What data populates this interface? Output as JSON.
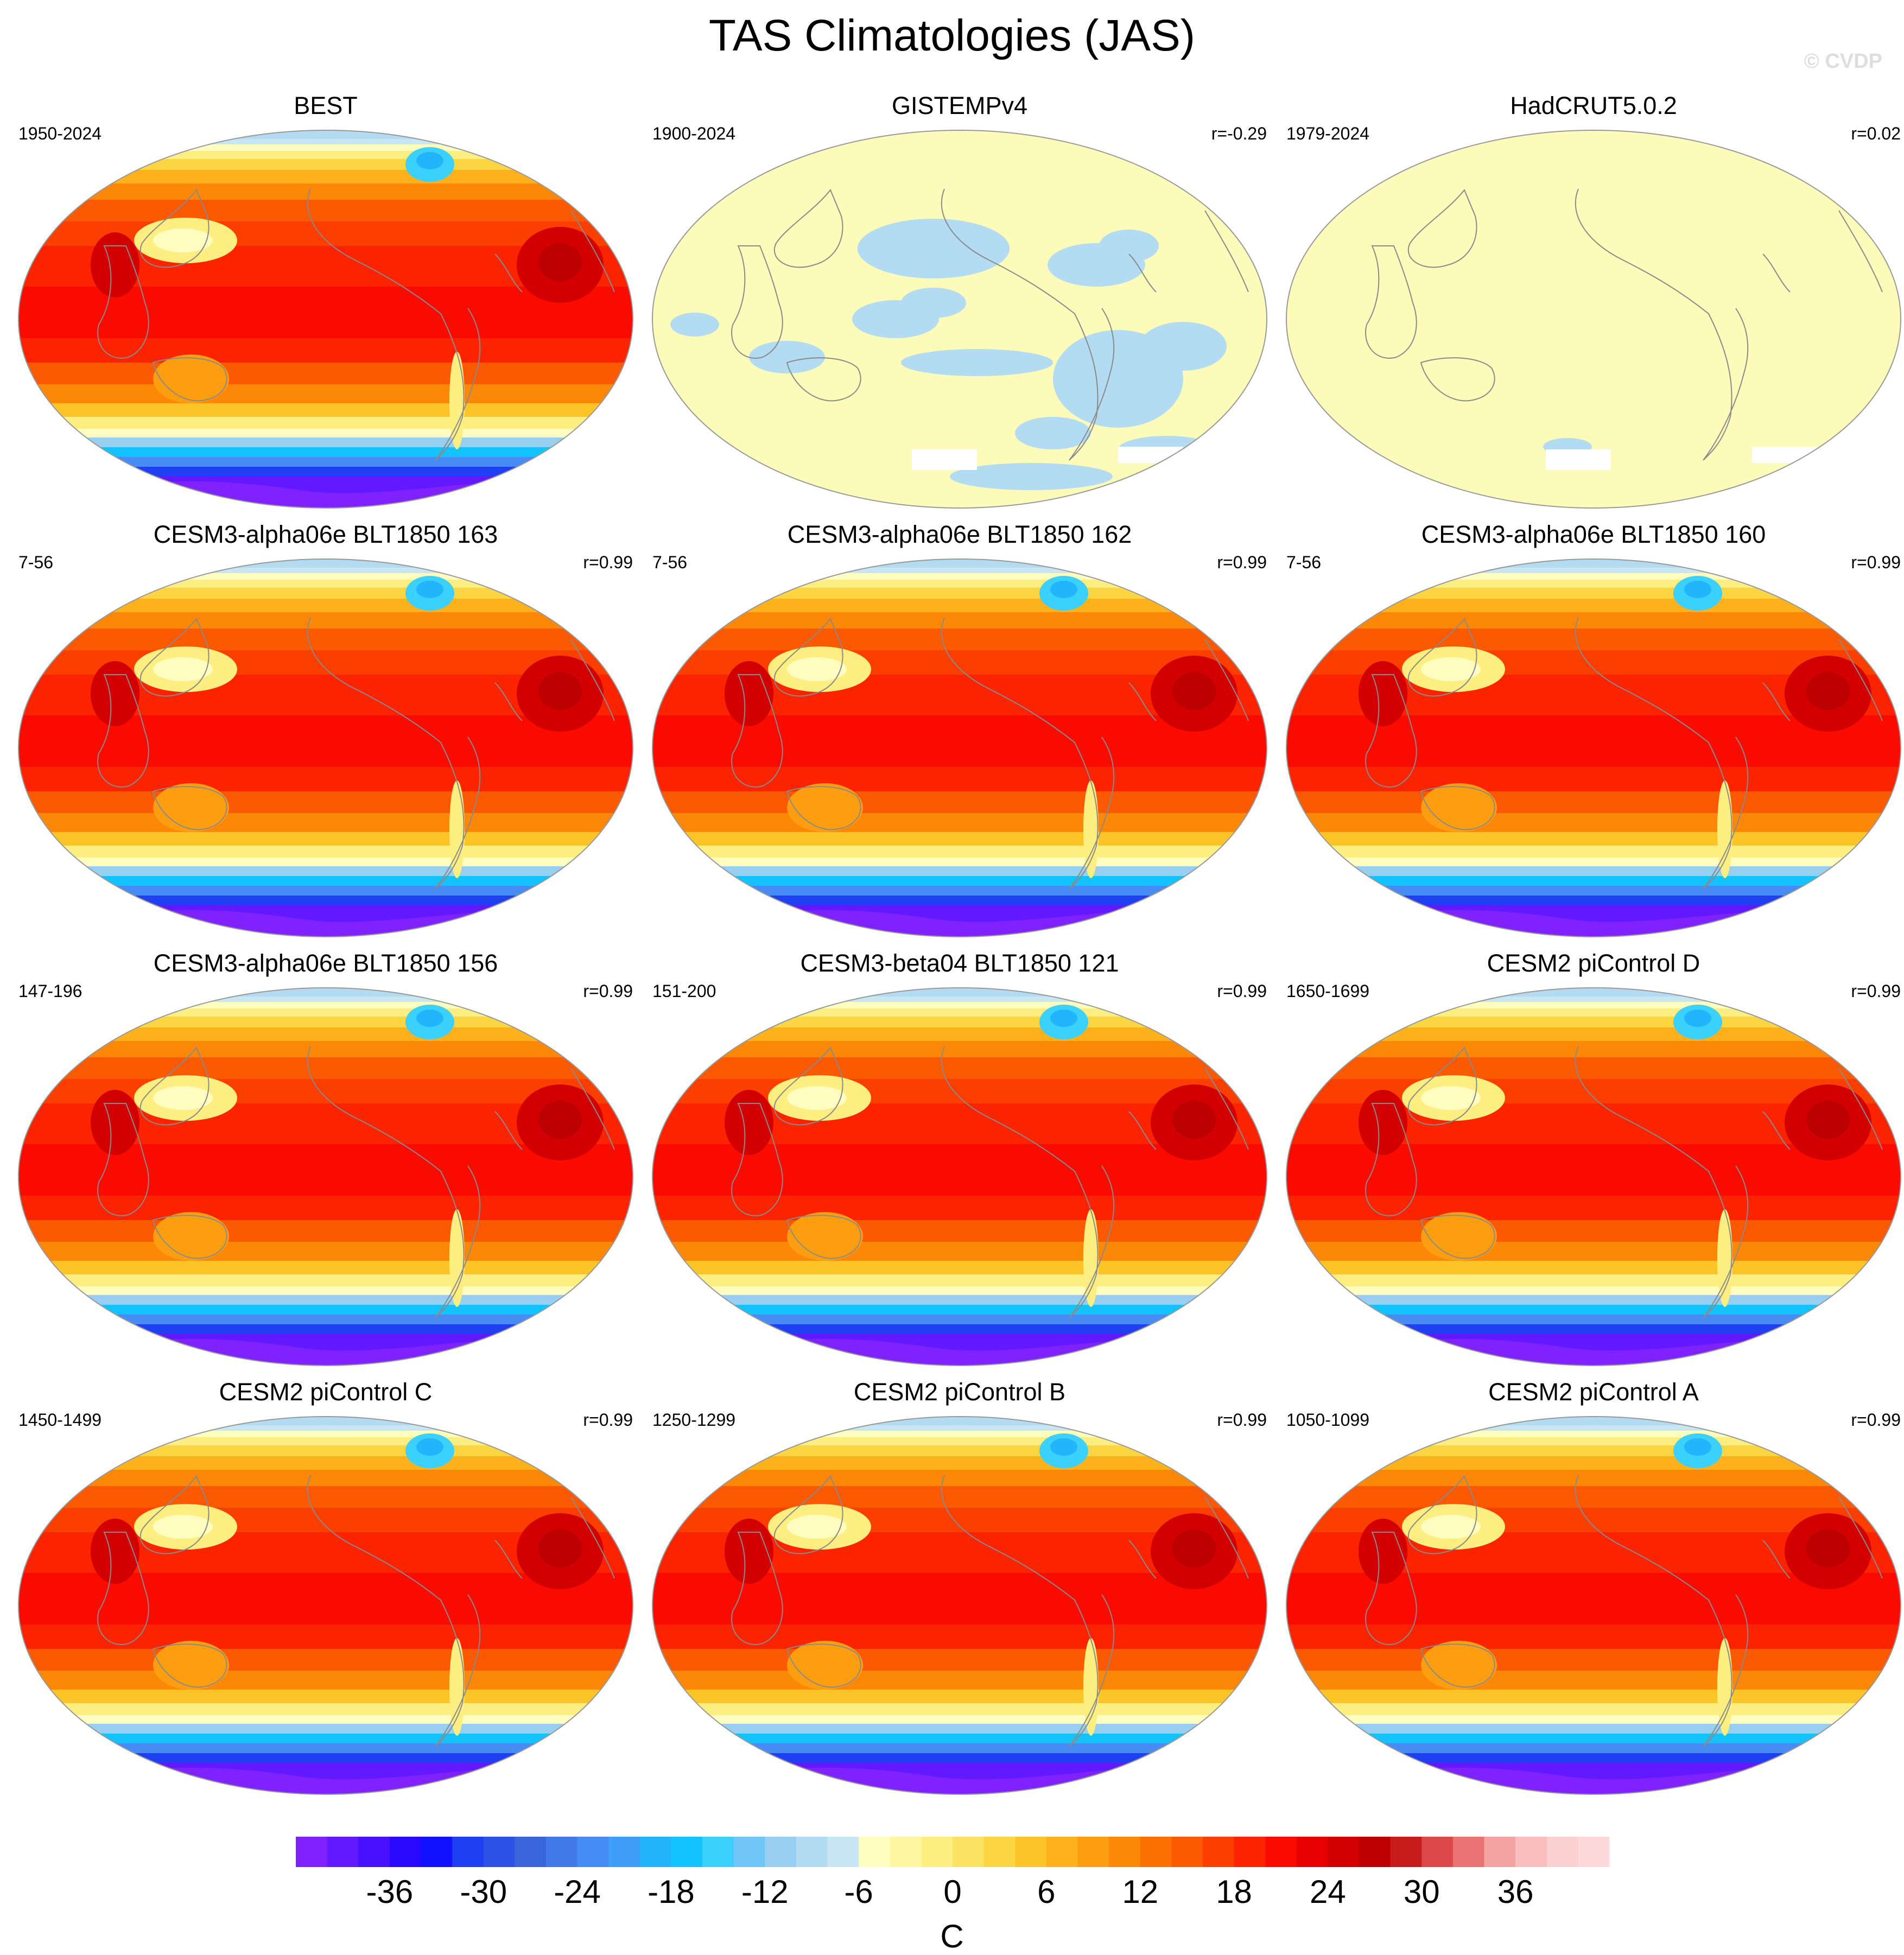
{
  "title": "TAS Climatologies (JAS)",
  "watermark": "© CVDP",
  "colors": {
    "ocean_pale": "#fdfbb9",
    "cold_patch": "#b3dcf2",
    "missing": "#ffffff",
    "coastline": "#8a8a8a",
    "outline": "#999999"
  },
  "panels": [
    {
      "title": "BEST",
      "period": "1950-2024",
      "corr": "",
      "style": "climatology"
    },
    {
      "title": "GISTEMPv4",
      "period": "1900-2024",
      "corr": "r=-0.29",
      "style": "anomaly_patches"
    },
    {
      "title": "HadCRUT5.0.2",
      "period": "1979-2024",
      "corr": "r=0.02",
      "style": "flat"
    },
    {
      "title": "CESM3-alpha06e BLT1850 163",
      "period": "7-56",
      "corr": "r=0.99",
      "style": "climatology"
    },
    {
      "title": "CESM3-alpha06e BLT1850 162",
      "period": "7-56",
      "corr": "r=0.99",
      "style": "climatology"
    },
    {
      "title": "CESM3-alpha06e BLT1850 160",
      "period": "7-56",
      "corr": "r=0.99",
      "style": "climatology"
    },
    {
      "title": "CESM3-alpha06e BLT1850 156",
      "period": "147-196",
      "corr": "r=0.99",
      "style": "climatology"
    },
    {
      "title": "CESM3-beta04 BLT1850 121",
      "period": "151-200",
      "corr": "r=0.99",
      "style": "climatology"
    },
    {
      "title": "CESM2 piControl D",
      "period": "1650-1699",
      "corr": "r=0.99",
      "style": "climatology"
    },
    {
      "title": "CESM2 piControl C",
      "period": "1450-1499",
      "corr": "r=0.99",
      "style": "climatology"
    },
    {
      "title": "CESM2 piControl B",
      "period": "1250-1299",
      "corr": "r=0.99",
      "style": "climatology"
    },
    {
      "title": "CESM2 piControl A",
      "period": "1050-1099",
      "corr": "r=0.99",
      "style": "climatology"
    }
  ],
  "colorbar": {
    "unit": "C",
    "min": -42,
    "max": 42,
    "step": 2,
    "tick_labels": [
      "-36",
      "-30",
      "-24",
      "-18",
      "-12",
      "-6",
      "0",
      "6",
      "12",
      "18",
      "24",
      "30",
      "36"
    ],
    "tick_values": [
      -36,
      -30,
      -24,
      -18,
      -12,
      -6,
      0,
      6,
      12,
      18,
      24,
      30,
      36
    ],
    "colors": [
      "#7f22ff",
      "#6319ff",
      "#4711ff",
      "#2b08ff",
      "#1111ff",
      "#1f3ff2",
      "#2c53e6",
      "#3a66db",
      "#4279e8",
      "#478cf4",
      "#3f9ff8",
      "#22b5fc",
      "#13c3fe",
      "#3cd0fd",
      "#70c6f7",
      "#98cff1",
      "#b3dcf2",
      "#c8e6f4",
      "#fefdbf",
      "#fdf6a0",
      "#fcee80",
      "#fce262",
      "#fcd543",
      "#fdc428",
      "#fdb21b",
      "#fd9e10",
      "#fd8707",
      "#fc7003",
      "#fb5902",
      "#fb3f00",
      "#fc2400",
      "#fb0a00",
      "#e80000",
      "#d20000",
      "#bd0000",
      "#c81b1b",
      "#dc4747",
      "#ea7474",
      "#f4a1a1",
      "#f9bdbd",
      "#fbd0d0",
      "#fdd8d8"
    ]
  }
}
